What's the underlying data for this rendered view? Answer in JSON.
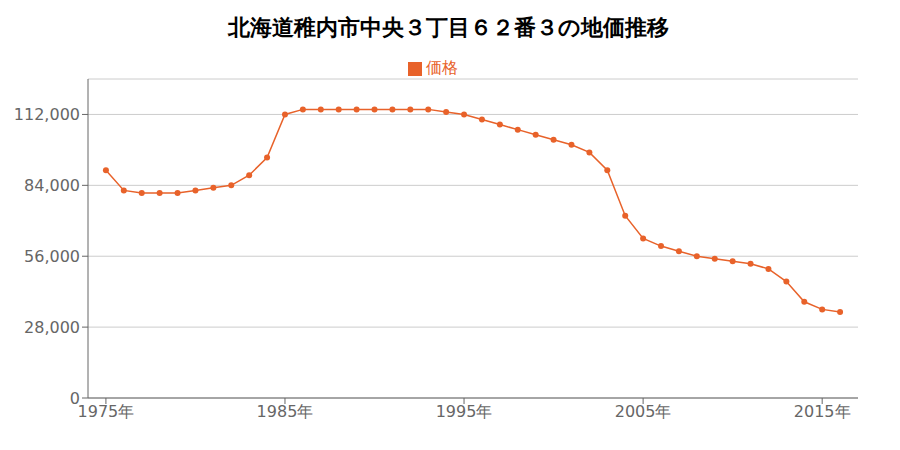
{
  "chart_data": {
    "type": "line",
    "title": "北海道稚内市中央３丁目６２番３の地価推移",
    "x": [
      1975,
      1976,
      1977,
      1978,
      1979,
      1980,
      1981,
      1982,
      1983,
      1984,
      1985,
      1986,
      1987,
      1988,
      1989,
      1990,
      1991,
      1992,
      1993,
      1994,
      1995,
      1996,
      1997,
      1998,
      1999,
      2000,
      2001,
      2002,
      2003,
      2004,
      2005,
      2006,
      2007,
      2008,
      2009,
      2010,
      2011,
      2012,
      2013,
      2014,
      2015,
      2016
    ],
    "series": [
      {
        "name": "価格",
        "color": "#E8622A",
        "marker": "circle",
        "values": [
          90000,
          82000,
          81000,
          81000,
          81000,
          82000,
          83000,
          84000,
          88000,
          95000,
          112000,
          114000,
          114000,
          114000,
          114000,
          114000,
          114000,
          114000,
          114000,
          113000,
          112000,
          110000,
          108000,
          106000,
          104000,
          102000,
          100000,
          97000,
          90000,
          72000,
          63000,
          60000,
          58000,
          56000,
          55000,
          54000,
          53000,
          51000,
          46000,
          38000,
          35000,
          34000
        ]
      }
    ],
    "xlim": [
      1974,
      2017
    ],
    "xticks": [
      {
        "value": 1975,
        "label": "1975年"
      },
      {
        "value": 1985,
        "label": "1985年"
      },
      {
        "value": 1995,
        "label": "1995年"
      },
      {
        "value": 2005,
        "label": "2005年"
      },
      {
        "value": 2015,
        "label": "2015年"
      }
    ],
    "ylim": [
      0,
      126000
    ],
    "yticks": [
      0,
      {
        "value": 28000,
        "label": "28,000"
      },
      {
        "value": 56000,
        "label": "56,000"
      },
      {
        "value": 84000,
        "label": "84,000"
      },
      {
        "value": 112000,
        "label": "112,000"
      }
    ],
    "grid": true,
    "legend": "top"
  }
}
